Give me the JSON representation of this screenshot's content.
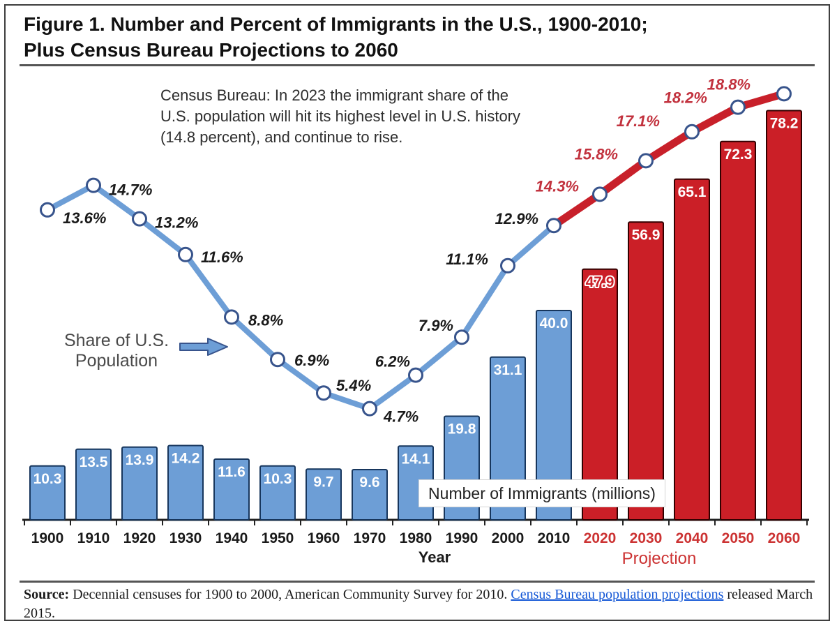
{
  "title": {
    "line1": "Figure 1. Number and Percent of Immigrants in the U.S., 1900-2010;",
    "line2": "Plus Census Bureau Projections to 2060"
  },
  "annotation": {
    "lines": [
      "Census Bureau: In 2023 the immigrant share of the",
      "U.S. population will hit its highest level in U.S. history",
      "(14.8 percent), and continue to rise."
    ]
  },
  "share_label": {
    "line1": "Share of U.S.",
    "line2": "Population"
  },
  "bars_label": "Number of Immigrants (millions)",
  "axis": {
    "xlabel": "Year",
    "projection_label": "Projection"
  },
  "source": {
    "prefix": "Source:",
    "before_link": " Decennial censuses for 1900 to 2000, American Community Survey for 2010. ",
    "link": "Census Bureau population projections",
    "after_link": " released March 2015."
  },
  "colors": {
    "bar_blue": "#6D9ED6",
    "bar_blue_stroke": "#17365D",
    "bar_red": "#CB1F27",
    "bar_red_stroke": "#330000",
    "line_blue": "#6D9ED6",
    "line_red": "#C8202A",
    "marker_fill": "#FFFFFF",
    "marker_stroke": "#38548C",
    "pct_black": "#1A1A1A",
    "pct_red": "#C2323E",
    "year_black": "#1A1A1A",
    "year_red": "#CC3333",
    "axis": "#222222",
    "link_blue": "#1558D6"
  },
  "chart_data": {
    "type": "bar+line",
    "title": "Number and Percent of Immigrants in the U.S., 1900-2010; Plus Census Bureau Projections to 2060",
    "xlabel": "Year",
    "categories": [
      "1900",
      "1910",
      "1920",
      "1930",
      "1940",
      "1950",
      "1960",
      "1970",
      "1980",
      "1990",
      "2000",
      "2010",
      "2020",
      "2030",
      "2040",
      "2050",
      "2060"
    ],
    "projection_start_category": "2020",
    "legend": "none; series labeled by on-chart text boxes",
    "grid": false,
    "ylim_bars": [
      0,
      86
    ],
    "ylim_line_pct": [
      0,
      20
    ],
    "series": [
      {
        "name": "Number of Immigrants (millions)",
        "type": "bar",
        "values": [
          10.3,
          13.5,
          13.9,
          14.2,
          11.6,
          10.3,
          9.7,
          9.6,
          14.1,
          19.8,
          31.1,
          40.0,
          47.9,
          56.9,
          65.1,
          72.3,
          78.2
        ]
      },
      {
        "name": "Share of U.S. Population",
        "type": "line",
        "unit": "%",
        "values": [
          13.6,
          14.7,
          13.2,
          11.6,
          8.8,
          6.9,
          5.4,
          4.7,
          6.2,
          7.9,
          11.1,
          12.9,
          14.3,
          15.8,
          17.1,
          18.2,
          18.8
        ]
      }
    ]
  }
}
